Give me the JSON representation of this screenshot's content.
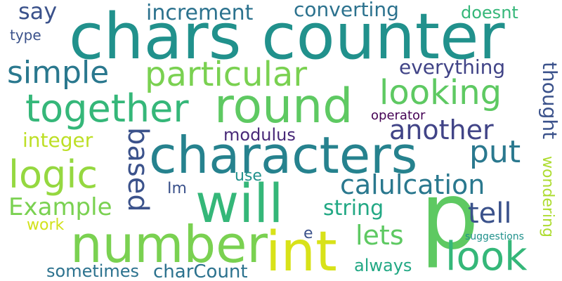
{
  "palette": {
    "background": "#ffffff",
    "darkest": "#440154",
    "indigo": "#3b528b",
    "blue_teal": "#2c728e",
    "teal": "#21918c",
    "green_teal": "#28ae80",
    "green": "#5ec962",
    "yellow_green": "#addc30",
    "yellow": "#d8e219"
  },
  "words": [
    {
      "text": "chars counter",
      "color": "#21918c",
      "orientation": "horizontal"
    },
    {
      "text": "characters",
      "color": "#26828e",
      "orientation": "horizontal"
    },
    {
      "text": "p",
      "color": "#5ec962",
      "orientation": "horizontal"
    },
    {
      "text": "number",
      "color": "#7ad151",
      "orientation": "horizontal"
    },
    {
      "text": "int",
      "color": "#d8e219",
      "orientation": "horizontal"
    },
    {
      "text": "will",
      "color": "#35b779",
      "orientation": "horizontal"
    },
    {
      "text": "round",
      "color": "#5ec962",
      "orientation": "horizontal"
    },
    {
      "text": "look",
      "color": "#35b779",
      "orientation": "horizontal"
    },
    {
      "text": "together",
      "color": "#35b779",
      "orientation": "horizontal"
    },
    {
      "text": "logic",
      "color": "#95d840",
      "orientation": "horizontal"
    },
    {
      "text": "particular",
      "color": "#7ad151",
      "orientation": "horizontal"
    },
    {
      "text": "looking",
      "color": "#5ec962",
      "orientation": "horizontal"
    },
    {
      "text": "put",
      "color": "#2a788e",
      "orientation": "horizontal"
    },
    {
      "text": "simple",
      "color": "#2a788e",
      "orientation": "horizontal"
    },
    {
      "text": "another",
      "color": "#414487",
      "orientation": "horizontal"
    },
    {
      "text": "calulcation",
      "color": "#2a788e",
      "orientation": "horizontal"
    },
    {
      "text": "based",
      "color": "#3b528b",
      "orientation": "vertical"
    },
    {
      "text": "tell",
      "color": "#3b528b",
      "orientation": "horizontal"
    },
    {
      "text": "Example",
      "color": "#7ad151",
      "orientation": "horizontal"
    },
    {
      "text": "lets",
      "color": "#5ec962",
      "orientation": "horizontal"
    },
    {
      "text": "increment",
      "color": "#2c728e",
      "orientation": "horizontal"
    },
    {
      "text": "say",
      "color": "#3b528b",
      "orientation": "horizontal"
    },
    {
      "text": "converting",
      "color": "#2c728e",
      "orientation": "horizontal"
    },
    {
      "text": "string",
      "color": "#22a884",
      "orientation": "horizontal"
    },
    {
      "text": "thought",
      "color": "#3b528b",
      "orientation": "vertical"
    },
    {
      "text": "wondering",
      "color": "#addc30",
      "orientation": "vertical"
    },
    {
      "text": "integer",
      "color": "#bddf26",
      "orientation": "horizontal"
    },
    {
      "text": "everything",
      "color": "#414487",
      "orientation": "horizontal"
    },
    {
      "text": "doesnt",
      "color": "#35b779",
      "orientation": "horizontal"
    },
    {
      "text": "always",
      "color": "#22a884",
      "orientation": "horizontal"
    },
    {
      "text": "sometimes",
      "color": "#2c728e",
      "orientation": "horizontal"
    },
    {
      "text": "charCount",
      "color": "#2c728e",
      "orientation": "horizontal"
    },
    {
      "text": "modulus",
      "color": "#482878",
      "orientation": "horizontal"
    },
    {
      "text": "use",
      "color": "#21918c",
      "orientation": "horizontal"
    },
    {
      "text": "Im",
      "color": "#3b528b",
      "orientation": "horizontal"
    },
    {
      "text": "work",
      "color": "#d2e21b",
      "orientation": "horizontal"
    },
    {
      "text": "type",
      "color": "#3b528b",
      "orientation": "horizontal"
    },
    {
      "text": "operator",
      "color": "#440154",
      "orientation": "horizontal"
    },
    {
      "text": "e",
      "color": "#3b528b",
      "orientation": "horizontal"
    },
    {
      "text": "suggestions",
      "color": "#21918c",
      "orientation": "horizontal"
    }
  ]
}
